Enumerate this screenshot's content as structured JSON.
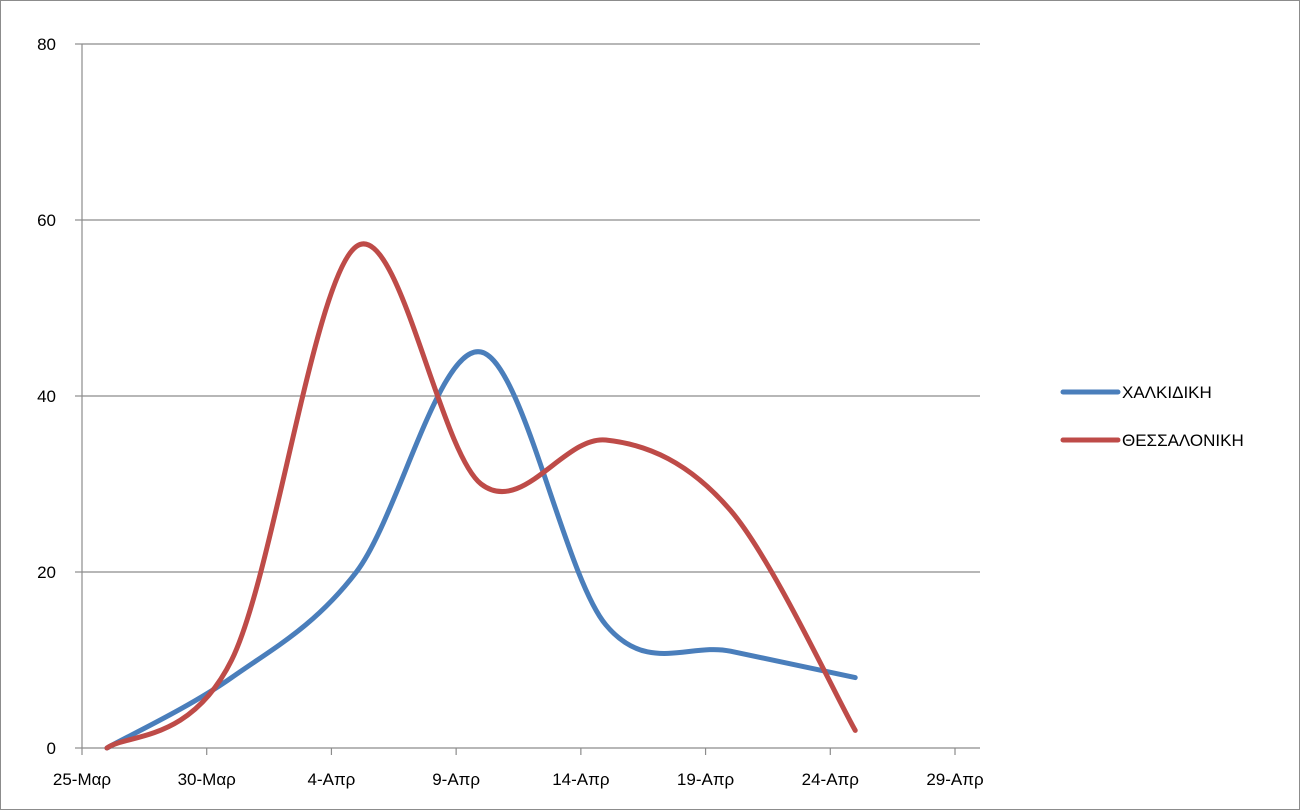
{
  "chart_data": {
    "type": "line",
    "title": "",
    "xlabel": "",
    "ylabel": "",
    "x_ticks": [
      "25-Μαρ",
      "30-Μαρ",
      "4-Απρ",
      "9-Απρ",
      "14-Απρ",
      "19-Απρ",
      "24-Απρ",
      "29-Απρ"
    ],
    "x_range": [
      "25-Μαρ",
      "29-Απρ"
    ],
    "y_ticks": [
      0,
      20,
      40,
      60,
      80
    ],
    "ylim": [
      0,
      80
    ],
    "grid": "horizontal",
    "smooth": true,
    "legend_position": "right",
    "series": [
      {
        "name": "ΧΑΛΚΙΔΙΚΗ",
        "color": "#4a7ebb",
        "points": [
          {
            "x": "26-Μαρ",
            "y": 0
          },
          {
            "x": "31-Μαρ",
            "y": 8
          },
          {
            "x": "5-Απρ",
            "y": 20
          },
          {
            "x": "10-Απρ",
            "y": 45
          },
          {
            "x": "15-Απρ",
            "y": 14
          },
          {
            "x": "20-Απρ",
            "y": 11
          },
          {
            "x": "25-Απρ",
            "y": 8
          }
        ]
      },
      {
        "name": "ΘΕΣΣΑΛΟΝΙΚΗ",
        "color": "#be4b48",
        "points": [
          {
            "x": "26-Μαρ",
            "y": 0
          },
          {
            "x": "31-Μαρ",
            "y": 10
          },
          {
            "x": "5-Απρ",
            "y": 57
          },
          {
            "x": "10-Απρ",
            "y": 30
          },
          {
            "x": "15-Απρ",
            "y": 35
          },
          {
            "x": "20-Απρ",
            "y": 27
          },
          {
            "x": "25-Απρ",
            "y": 2
          }
        ]
      }
    ]
  },
  "colors": {
    "gridline": "#8c8c8c",
    "axis": "#8c8c8c",
    "frame": "#8c8c8c"
  }
}
